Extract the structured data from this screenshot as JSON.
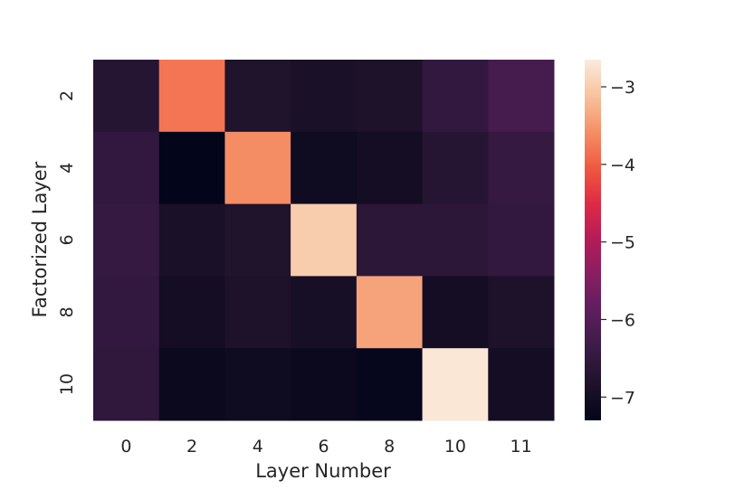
{
  "chart_data": {
    "type": "heatmap",
    "title": "",
    "xlabel": "Layer Number",
    "ylabel": "Factorized Layer",
    "x_categories": [
      "0",
      "2",
      "4",
      "6",
      "8",
      "10",
      "11"
    ],
    "y_categories": [
      "2",
      "4",
      "6",
      "8",
      "10"
    ],
    "values": [
      [
        -6.7,
        -3.8,
        -6.8,
        -6.9,
        -6.85,
        -6.5,
        -6.2
      ],
      [
        -6.5,
        -7.3,
        -3.6,
        -7.1,
        -7.0,
        -6.7,
        -6.45
      ],
      [
        -6.45,
        -6.9,
        -6.8,
        -3.0,
        -6.6,
        -6.6,
        -6.5
      ],
      [
        -6.5,
        -7.0,
        -6.85,
        -6.95,
        -3.4,
        -7.0,
        -6.85
      ],
      [
        -6.55,
        -7.15,
        -7.1,
        -7.15,
        -7.25,
        -2.7,
        -7.0
      ]
    ],
    "colorbar": {
      "colormap": "rocket",
      "range": [
        -7.3,
        -2.65
      ],
      "ticks": [
        -3,
        -4,
        -5,
        -6,
        -7
      ],
      "tick_labels": [
        "−3",
        "−4",
        "−5",
        "−6",
        "−7"
      ]
    },
    "grid": false
  }
}
